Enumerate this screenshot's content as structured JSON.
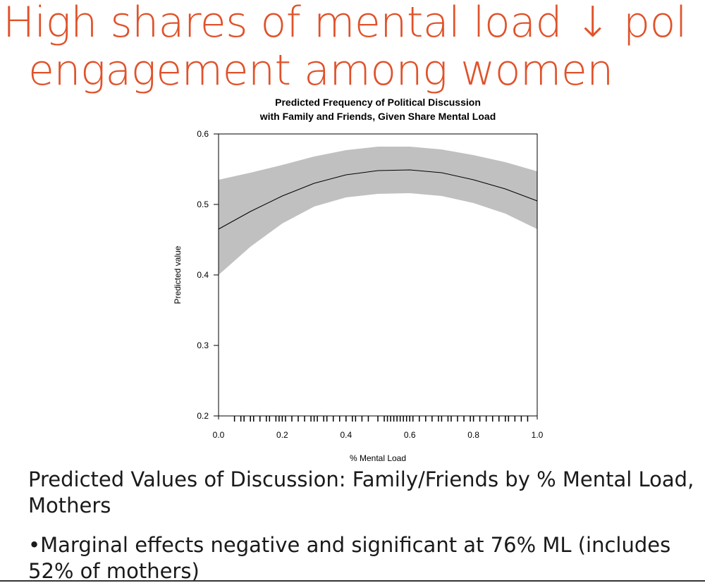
{
  "slide": {
    "title_lines": [
      "High shares of mental load ↓ pol",
      "engagement among women"
    ],
    "caption": "Predicted Values of Discussion: Family/Friends by % Mental Load, Mothers",
    "bullet": "Marginal effects negative and significant at 76% ML (includes 52% of mothers)"
  },
  "chart_data": {
    "type": "line",
    "title": [
      "Predicted Frequency of Political Discussion",
      "with Family and Friends, Given Share Mental Load"
    ],
    "x_label": "% Mental Load",
    "y_label": "Predicted value",
    "x": [
      0,
      0.1,
      0.2,
      0.3,
      0.4,
      0.5,
      0.6,
      0.7,
      0.8,
      0.9,
      1.0
    ],
    "series": [
      {
        "color": "#000000",
        "band_color": "#c0c0c0",
        "values": [
          0.465,
          0.49,
          0.512,
          0.53,
          0.542,
          0.548,
          0.549,
          0.545,
          0.535,
          0.522,
          0.505
        ],
        "lower": [
          0.4,
          0.44,
          0.473,
          0.497,
          0.51,
          0.515,
          0.516,
          0.512,
          0.502,
          0.487,
          0.465
        ],
        "upper": [
          0.535,
          0.545,
          0.556,
          0.568,
          0.577,
          0.582,
          0.582,
          0.578,
          0.57,
          0.56,
          0.547
        ]
      }
    ],
    "rug": [
      0.05,
      0.07,
      0.08,
      0.1,
      0.11,
      0.13,
      0.15,
      0.16,
      0.18,
      0.19,
      0.2,
      0.21,
      0.23,
      0.25,
      0.27,
      0.29,
      0.3,
      0.31,
      0.33,
      0.34,
      0.36,
      0.38,
      0.4,
      0.42,
      0.43,
      0.45,
      0.47,
      0.5,
      0.52,
      0.53,
      0.54,
      0.55,
      0.56,
      0.57,
      0.58,
      0.59,
      0.6,
      0.61,
      0.63,
      0.65,
      0.67,
      0.69,
      0.7,
      0.72,
      0.73,
      0.75,
      0.77,
      0.79,
      0.8,
      0.82,
      0.84,
      0.86,
      0.88,
      0.9,
      0.91,
      0.93,
      0.95,
      0.97
    ],
    "xlim": [
      0,
      1
    ],
    "ylim": [
      0.2,
      0.6
    ],
    "xticks": [
      {
        "value": 0,
        "label": "0.0"
      },
      0.2,
      0.4,
      0.6,
      0.8,
      {
        "value": 1,
        "label": "1.0"
      }
    ],
    "yticks": [
      0.2,
      0.3,
      0.4,
      0.5,
      0.6
    ]
  }
}
